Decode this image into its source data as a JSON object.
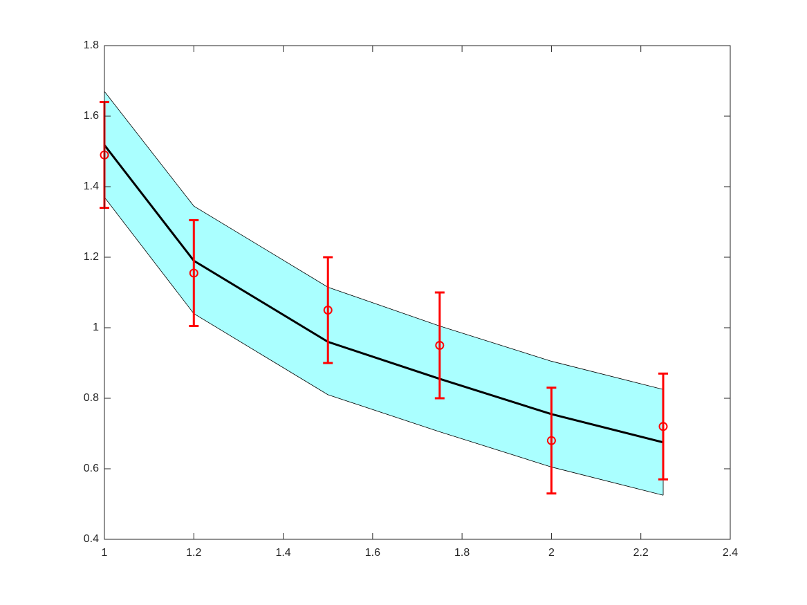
{
  "chart_data": {
    "type": "errorbar",
    "x": [
      1,
      1.2,
      1.5,
      1.75,
      2,
      2.25
    ],
    "band": {
      "upper": [
        1.67,
        1.345,
        1.115,
        1.005,
        0.905,
        0.825
      ],
      "lower": [
        1.37,
        1.04,
        0.81,
        0.705,
        0.605,
        0.525
      ],
      "color": "#aaffff",
      "edge_color": "#000000"
    },
    "fit": {
      "values": [
        1.518,
        1.19,
        0.96,
        0.855,
        0.755,
        0.675
      ],
      "color": "#000000"
    },
    "points": {
      "values": [
        1.49,
        1.155,
        1.05,
        0.95,
        0.68,
        0.72
      ],
      "errors": [
        0.15,
        0.15,
        0.15,
        0.15,
        0.15,
        0.15
      ],
      "color": "#ff0000"
    },
    "xlim": [
      1,
      2.4
    ],
    "ylim": [
      0.4,
      1.8
    ],
    "xticks": [
      1,
      1.2,
      1.4,
      1.6,
      1.8,
      2,
      2.2,
      2.4
    ],
    "yticks": [
      0.4,
      0.6,
      0.8,
      1,
      1.2,
      1.4,
      1.6,
      1.8
    ]
  }
}
